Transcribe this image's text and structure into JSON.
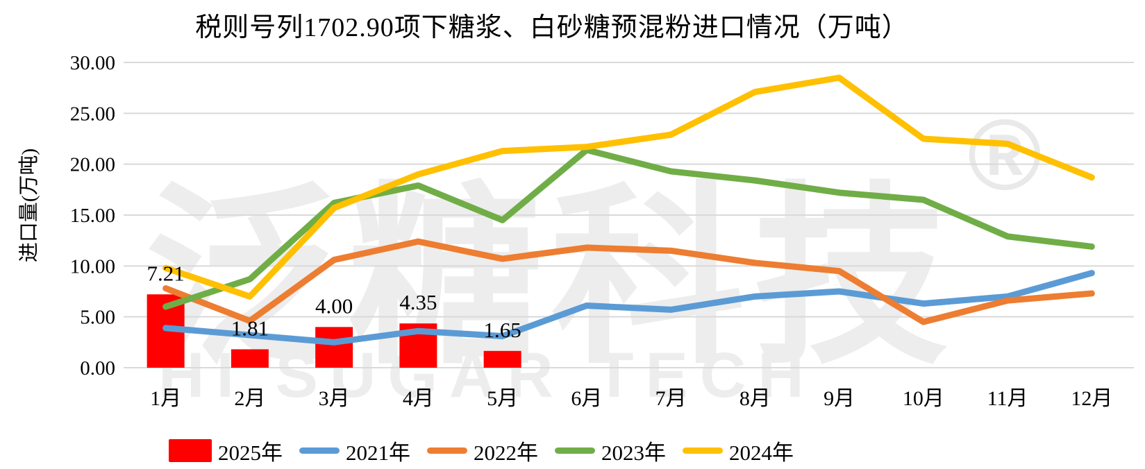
{
  "title": "税则号列1702.90项下糖浆、白砂糖预混粉进口情况（万吨）",
  "watermark": {
    "cjk_text": "泛糖科技",
    "registered_mark": "®",
    "latin_text": "HI SUGAR TECH",
    "color_cjk": "#EDEDED",
    "color_mark": "#E9E9E9"
  },
  "chart_data": {
    "type": "bar+line",
    "title": "税则号列1702.90项下糖浆、白砂糖预混粉进口情况（万吨）",
    "xlabel": "",
    "ylabel": "进口量(万吨)",
    "ylim": [
      0,
      30
    ],
    "ytick_values": [
      0,
      5,
      10,
      15,
      20,
      25,
      30
    ],
    "ytick_labels": [
      "0.00",
      "5.00",
      "10.00",
      "15.00",
      "20.00",
      "25.00",
      "30.00"
    ],
    "grid": true,
    "gridline_color": "#D9D9D9",
    "legend_position": "bottom",
    "categories": [
      "1月",
      "2月",
      "3月",
      "4月",
      "5月",
      "6月",
      "7月",
      "8月",
      "9月",
      "10月",
      "11月",
      "12月"
    ],
    "bar_series": {
      "name": "2025年",
      "color": "#FF0000",
      "values": [
        7.21,
        1.81,
        4.0,
        4.35,
        1.65,
        null,
        null,
        null,
        null,
        null,
        null,
        null
      ],
      "data_labels": [
        "7.21",
        "1.81",
        "4.00",
        "4.35",
        "1.65"
      ]
    },
    "line_series": [
      {
        "name": "2021年",
        "color": "#5B9BD5",
        "values": [
          3.9,
          3.2,
          2.5,
          3.6,
          3.1,
          6.1,
          5.7,
          7.0,
          7.5,
          6.3,
          7.0,
          9.3
        ]
      },
      {
        "name": "2022年",
        "color": "#ED7D31",
        "values": [
          7.8,
          4.6,
          10.6,
          12.4,
          10.7,
          11.8,
          11.5,
          10.3,
          9.5,
          4.5,
          6.6,
          7.3
        ]
      },
      {
        "name": "2023年",
        "color": "#70AD47",
        "values": [
          6.0,
          8.7,
          16.2,
          17.9,
          14.5,
          21.4,
          19.3,
          18.4,
          17.2,
          16.5,
          12.9,
          11.9
        ]
      },
      {
        "name": "2024年",
        "color": "#FFC000",
        "values": [
          9.8,
          7.0,
          15.7,
          19.0,
          21.3,
          21.7,
          22.9,
          27.1,
          28.5,
          22.5,
          22.0,
          18.7
        ]
      }
    ]
  }
}
